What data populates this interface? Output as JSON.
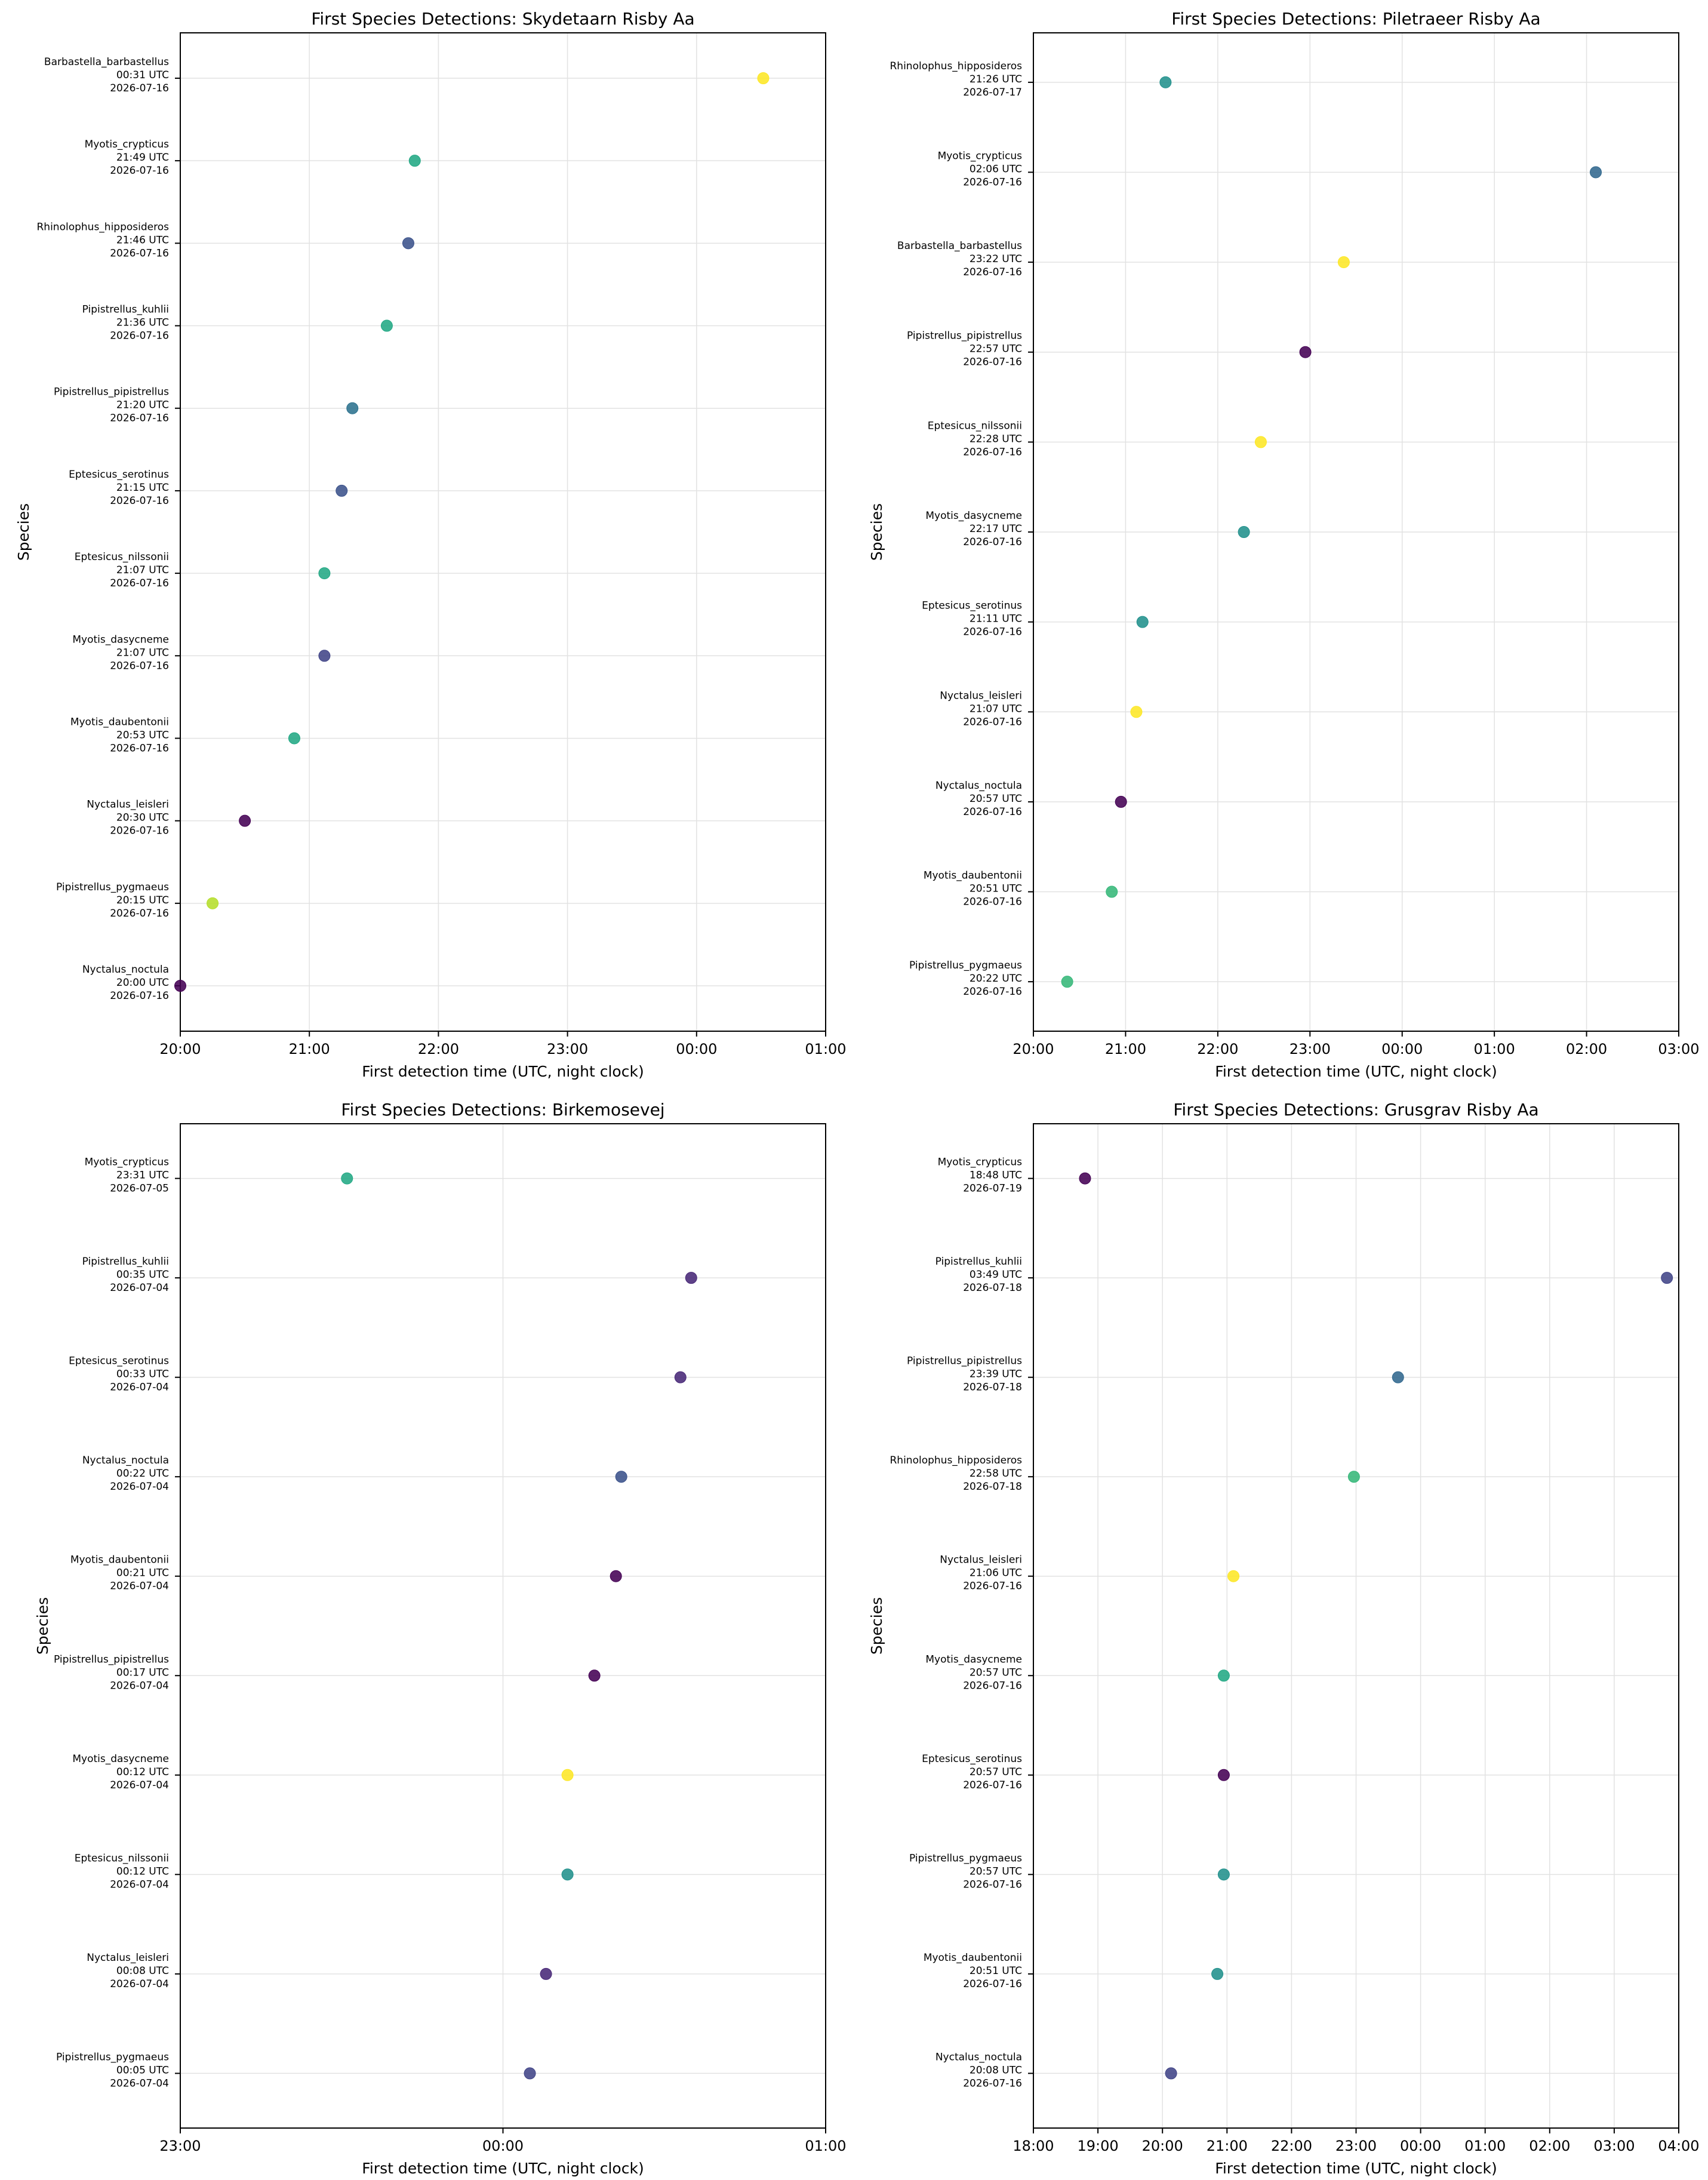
{
  "chart_data": [
    {
      "type": "scatter",
      "title": "First Species Detections: Skydetaarn Risby Aa",
      "xlabel": "First detection time (UTC, night clock)",
      "ylabel": "Species",
      "x_ticks": [
        "20:00",
        "21:00",
        "22:00",
        "23:00",
        "00:00",
        "01:00"
      ],
      "xlim": [
        "20:00",
        "01:00"
      ],
      "grid": true,
      "points": [
        {
          "species": "Barbastella_barbastellus",
          "time": "00:31 UTC",
          "date": "2026-07-16",
          "color": "#fde725"
        },
        {
          "species": "Myotis_crypticus",
          "time": "21:49 UTC",
          "date": "2026-07-16",
          "color": "#22a884"
        },
        {
          "species": "Rhinolophus_hipposideros",
          "time": "21:46 UTC",
          "date": "2026-07-16",
          "color": "#3b528b"
        },
        {
          "species": "Pipistrellus_kuhlii",
          "time": "21:36 UTC",
          "date": "2026-07-16",
          "color": "#22a884"
        },
        {
          "species": "Pipistrellus_pipistrellus",
          "time": "21:20 UTC",
          "date": "2026-07-16",
          "color": "#2c728e"
        },
        {
          "species": "Eptesicus_serotinus",
          "time": "21:15 UTC",
          "date": "2026-07-16",
          "color": "#3b528b"
        },
        {
          "species": "Eptesicus_nilssonii",
          "time": "21:07 UTC",
          "date": "2026-07-16",
          "color": "#22a884"
        },
        {
          "species": "Myotis_dasycneme",
          "time": "21:07 UTC",
          "date": "2026-07-16",
          "color": "#414487"
        },
        {
          "species": "Myotis_daubentonii",
          "time": "20:53 UTC",
          "date": "2026-07-16",
          "color": "#22a884"
        },
        {
          "species": "Nyctalus_leisleri",
          "time": "20:30 UTC",
          "date": "2026-07-16",
          "color": "#440154"
        },
        {
          "species": "Pipistrellus_pygmaeus",
          "time": "20:15 UTC",
          "date": "2026-07-16",
          "color": "#b5de2b"
        },
        {
          "species": "Nyctalus_noctula",
          "time": "20:00 UTC",
          "date": "2026-07-16",
          "color": "#440154"
        }
      ]
    },
    {
      "type": "scatter",
      "title": "First Species Detections: Piletraeer Risby Aa",
      "xlabel": "First detection time (UTC, night clock)",
      "ylabel": "Species",
      "x_ticks": [
        "20:00",
        "21:00",
        "22:00",
        "23:00",
        "00:00",
        "01:00",
        "02:00",
        "03:00"
      ],
      "xlim": [
        "20:00",
        "03:00"
      ],
      "grid": true,
      "points": [
        {
          "species": "Rhinolophus_hipposideros",
          "time": "21:26 UTC",
          "date": "2026-07-17",
          "color": "#21918c"
        },
        {
          "species": "Myotis_crypticus",
          "time": "02:06 UTC",
          "date": "2026-07-16",
          "color": "#31688e"
        },
        {
          "species": "Barbastella_barbastellus",
          "time": "23:22 UTC",
          "date": "2026-07-16",
          "color": "#fde725"
        },
        {
          "species": "Pipistrellus_pipistrellus",
          "time": "22:57 UTC",
          "date": "2026-07-16",
          "color": "#440154"
        },
        {
          "species": "Eptesicus_nilssonii",
          "time": "22:28 UTC",
          "date": "2026-07-16",
          "color": "#fde725"
        },
        {
          "species": "Myotis_dasycneme",
          "time": "22:17 UTC",
          "date": "2026-07-16",
          "color": "#21918c"
        },
        {
          "species": "Eptesicus_serotinus",
          "time": "21:11 UTC",
          "date": "2026-07-16",
          "color": "#21918c"
        },
        {
          "species": "Nyctalus_leisleri",
          "time": "21:07 UTC",
          "date": "2026-07-16",
          "color": "#fde725"
        },
        {
          "species": "Nyctalus_noctula",
          "time": "20:57 UTC",
          "date": "2026-07-16",
          "color": "#440154"
        },
        {
          "species": "Myotis_daubentonii",
          "time": "20:51 UTC",
          "date": "2026-07-16",
          "color": "#35b779"
        },
        {
          "species": "Pipistrellus_pygmaeus",
          "time": "20:22 UTC",
          "date": "2026-07-16",
          "color": "#35b779"
        }
      ]
    },
    {
      "type": "scatter",
      "title": "First Species Detections: Birkemosevej",
      "xlabel": "First detection time (UTC, night clock)",
      "ylabel": "Species",
      "x_ticks": [
        "23:00",
        "00:00",
        "01:00"
      ],
      "xlim": [
        "23:00",
        "01:00"
      ],
      "grid": true,
      "points": [
        {
          "species": "Myotis_crypticus",
          "time": "23:31 UTC",
          "date": "2026-07-05",
          "color": "#22a884"
        },
        {
          "species": "Pipistrellus_kuhlii",
          "time": "00:35 UTC",
          "date": "2026-07-04",
          "color": "#482878"
        },
        {
          "species": "Eptesicus_serotinus",
          "time": "00:33 UTC",
          "date": "2026-07-04",
          "color": "#482878"
        },
        {
          "species": "Nyctalus_noctula",
          "time": "00:22 UTC",
          "date": "2026-07-04",
          "color": "#3b528b"
        },
        {
          "species": "Myotis_daubentonii",
          "time": "00:21 UTC",
          "date": "2026-07-04",
          "color": "#440154"
        },
        {
          "species": "Pipistrellus_pipistrellus",
          "time": "00:17 UTC",
          "date": "2026-07-04",
          "color": "#440154"
        },
        {
          "species": "Myotis_dasycneme",
          "time": "00:12 UTC",
          "date": "2026-07-04",
          "color": "#fde725"
        },
        {
          "species": "Eptesicus_nilssonii",
          "time": "00:12 UTC",
          "date": "2026-07-04",
          "color": "#21918c"
        },
        {
          "species": "Nyctalus_leisleri",
          "time": "00:08 UTC",
          "date": "2026-07-04",
          "color": "#482878"
        },
        {
          "species": "Pipistrellus_pygmaeus",
          "time": "00:05 UTC",
          "date": "2026-07-04",
          "color": "#414487"
        }
      ]
    },
    {
      "type": "scatter",
      "title": "First Species Detections: Grusgrav Risby Aa",
      "xlabel": "First detection time (UTC, night clock)",
      "ylabel": "Species",
      "x_ticks": [
        "18:00",
        "19:00",
        "20:00",
        "21:00",
        "22:00",
        "23:00",
        "00:00",
        "01:00",
        "02:00",
        "03:00",
        "04:00"
      ],
      "xlim": [
        "18:00",
        "04:00"
      ],
      "grid": true,
      "points": [
        {
          "species": "Myotis_crypticus",
          "time": "18:48 UTC",
          "date": "2026-07-19",
          "color": "#440154"
        },
        {
          "species": "Pipistrellus_kuhlii",
          "time": "03:49 UTC",
          "date": "2026-07-18",
          "color": "#414487"
        },
        {
          "species": "Pipistrellus_pipistrellus",
          "time": "23:39 UTC",
          "date": "2026-07-18",
          "color": "#31688e"
        },
        {
          "species": "Rhinolophus_hipposideros",
          "time": "22:58 UTC",
          "date": "2026-07-18",
          "color": "#35b779"
        },
        {
          "species": "Nyctalus_leisleri",
          "time": "21:06 UTC",
          "date": "2026-07-16",
          "color": "#fde725"
        },
        {
          "species": "Myotis_dasycneme",
          "time": "20:57 UTC",
          "date": "2026-07-16",
          "color": "#22a884"
        },
        {
          "species": "Eptesicus_serotinus",
          "time": "20:57 UTC",
          "date": "2026-07-16",
          "color": "#440154"
        },
        {
          "species": "Pipistrellus_pygmaeus",
          "time": "20:57 UTC",
          "date": "2026-07-16",
          "color": "#21918c"
        },
        {
          "species": "Myotis_daubentonii",
          "time": "20:51 UTC",
          "date": "2026-07-16",
          "color": "#21918c"
        },
        {
          "species": "Nyctalus_noctula",
          "time": "20:08 UTC",
          "date": "2026-07-16",
          "color": "#414487"
        }
      ]
    }
  ]
}
